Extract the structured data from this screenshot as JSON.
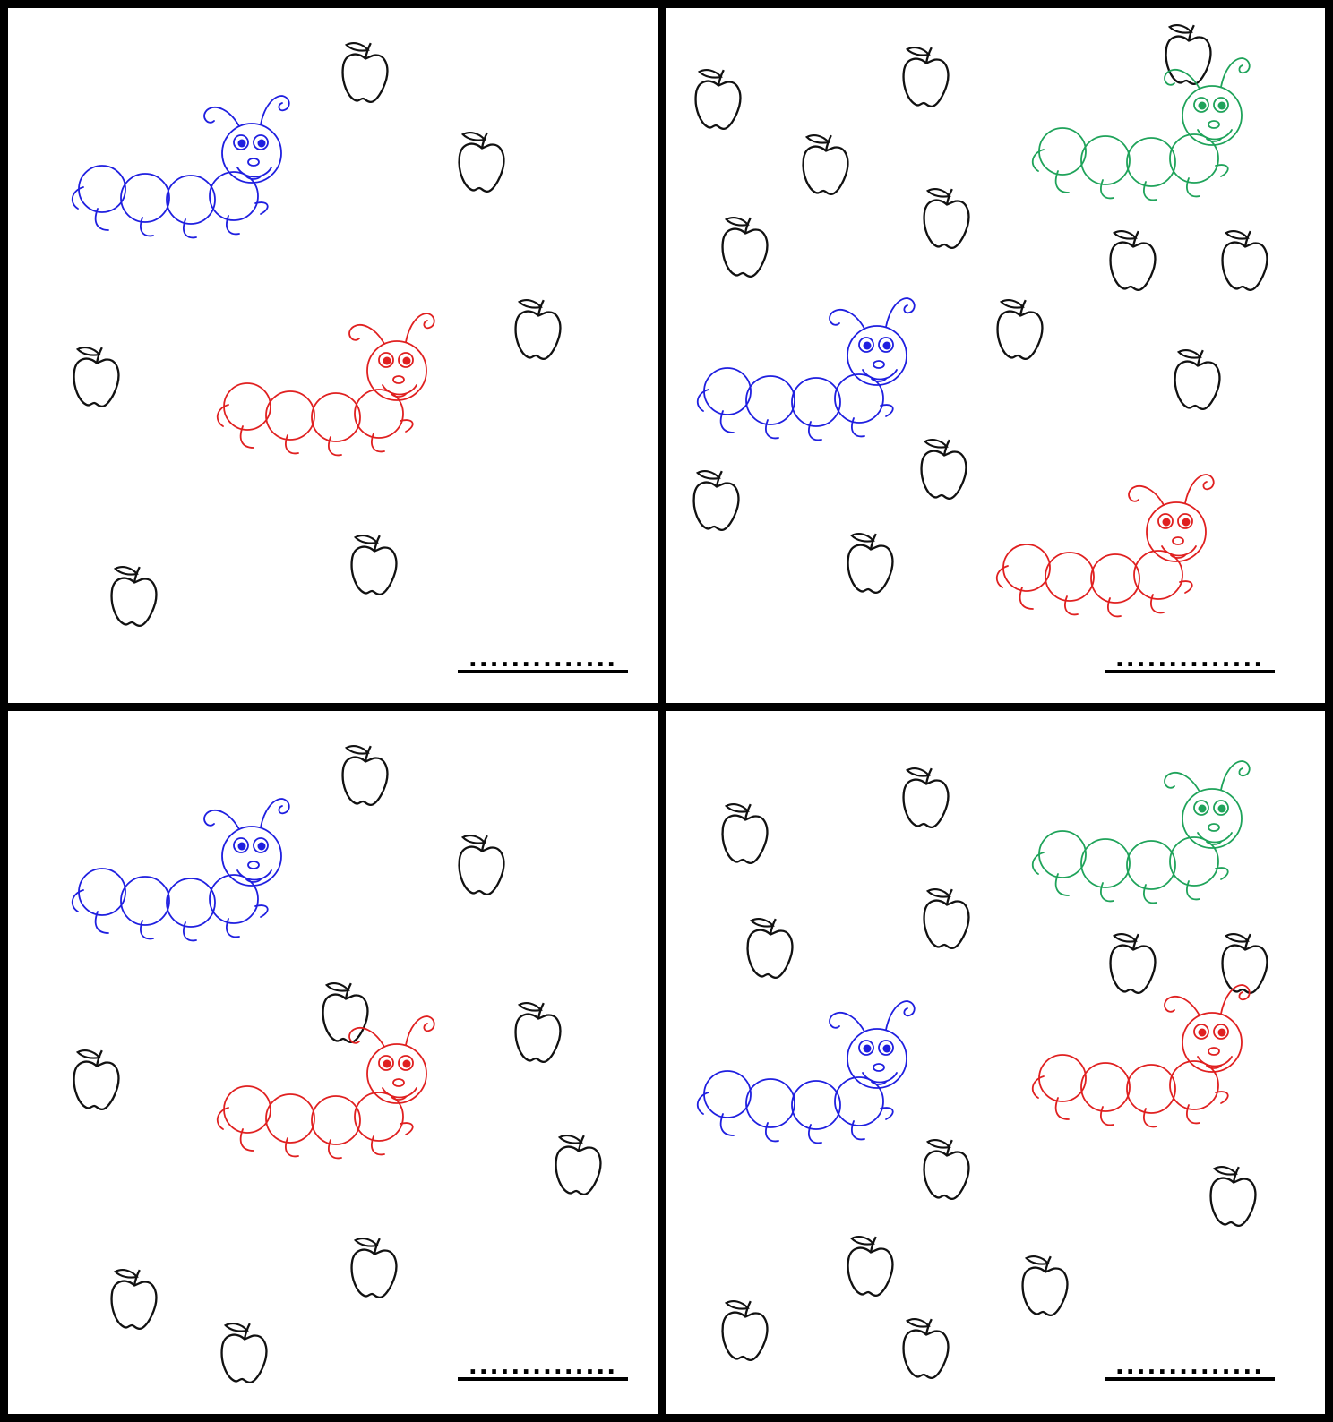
{
  "worksheet": {
    "colors": {
      "frame": "#000000",
      "apple": "#111111",
      "blue": "#1f1fe0",
      "red": "#e02020",
      "green": "#1fa35a"
    },
    "answer_blank": "..............",
    "panels": [
      {
        "id": "top-left",
        "apple_count": 6,
        "caterpillars": [
          "blue",
          "red"
        ]
      },
      {
        "id": "top-right",
        "apple_count": 13,
        "caterpillars": [
          "green",
          "blue",
          "red"
        ]
      },
      {
        "id": "bottom-left",
        "apple_count": 9,
        "caterpillars": [
          "blue",
          "red"
        ]
      },
      {
        "id": "bottom-right",
        "apple_count": 12,
        "caterpillars": [
          "green",
          "blue",
          "red"
        ]
      }
    ]
  }
}
